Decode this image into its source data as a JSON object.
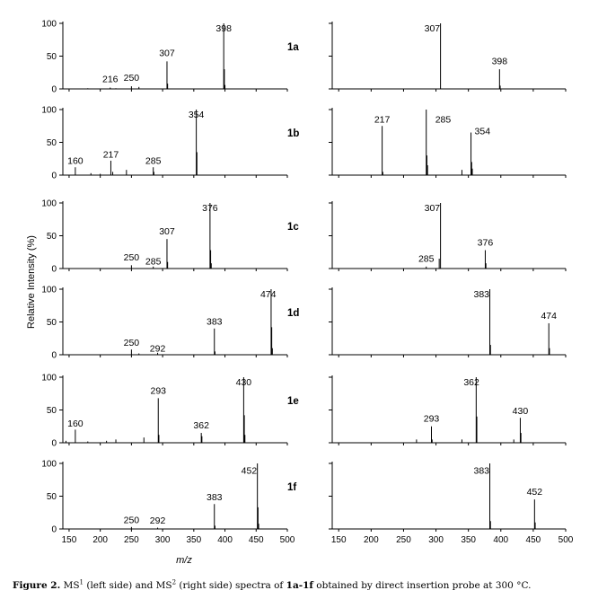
{
  "figure": {
    "ylabel": "Relative Intensity (%)",
    "xlabel": "m/z",
    "caption": {
      "label": "Figure 2.",
      "ms1": "MS",
      "sup1": "1",
      "part1": " (left side) and MS",
      "sup2": "2",
      "part2": " (right side) spectra of ",
      "compounds": "1a-1f",
      "part3": " obtained by direct insertion probe at 300 °C."
    }
  },
  "chart_data": [
    {
      "type": "bar",
      "panel": "1a",
      "side": "MS1",
      "xlim": [
        140,
        500
      ],
      "ylim": [
        0,
        100
      ],
      "yticks": [
        "0",
        "50",
        "100"
      ],
      "xticks": [],
      "peaks": [
        {
          "x": 180,
          "y": 1
        },
        {
          "x": 216,
          "y": 2
        },
        {
          "x": 225,
          "y": 1
        },
        {
          "x": 250,
          "y": 4
        },
        {
          "x": 262,
          "y": 3
        },
        {
          "x": 307,
          "y": 42
        },
        {
          "x": 308,
          "y": 8
        },
        {
          "x": 398,
          "y": 100
        },
        {
          "x": 399,
          "y": 30
        },
        {
          "x": 400,
          "y": 6
        }
      ],
      "labels": [
        {
          "x": 216,
          "text": "216",
          "y": 10
        },
        {
          "x": 250,
          "text": "250",
          "y": 12
        },
        {
          "x": 307,
          "text": "307",
          "y": 50
        },
        {
          "x": 398,
          "text": "398",
          "y": 88
        }
      ],
      "tag": "1a"
    },
    {
      "type": "bar",
      "panel": "1a",
      "side": "MS2",
      "xlim": [
        140,
        500
      ],
      "ylim": [
        0,
        100
      ],
      "yticks": [],
      "xticks": [],
      "peaks": [
        {
          "x": 307,
          "y": 100
        },
        {
          "x": 398,
          "y": 30
        },
        {
          "x": 399,
          "y": 5
        }
      ],
      "labels": [
        {
          "x": 307,
          "text": "307",
          "y": 88,
          "dx": -18
        },
        {
          "x": 398,
          "text": "398",
          "y": 38
        }
      ],
      "tag": ""
    },
    {
      "type": "bar",
      "panel": "1b",
      "side": "MS1",
      "xlim": [
        140,
        500
      ],
      "ylim": [
        0,
        100
      ],
      "yticks": [
        "0",
        "50",
        "100"
      ],
      "xticks": [],
      "peaks": [
        {
          "x": 160,
          "y": 12
        },
        {
          "x": 185,
          "y": 3
        },
        {
          "x": 200,
          "y": 2
        },
        {
          "x": 217,
          "y": 22
        },
        {
          "x": 220,
          "y": 5
        },
        {
          "x": 242,
          "y": 8
        },
        {
          "x": 285,
          "y": 12
        },
        {
          "x": 286,
          "y": 5
        },
        {
          "x": 354,
          "y": 100
        },
        {
          "x": 355,
          "y": 35
        }
      ],
      "labels": [
        {
          "x": 160,
          "text": "160",
          "y": 17
        },
        {
          "x": 217,
          "text": "217",
          "y": 27
        },
        {
          "x": 285,
          "text": "285",
          "y": 17
        },
        {
          "x": 354,
          "text": "354",
          "y": 88
        }
      ],
      "tag": "1b"
    },
    {
      "type": "bar",
      "panel": "1b",
      "side": "MS2",
      "xlim": [
        140,
        500
      ],
      "ylim": [
        0,
        100
      ],
      "yticks": [],
      "xticks": [],
      "peaks": [
        {
          "x": 217,
          "y": 75
        },
        {
          "x": 218,
          "y": 5
        },
        {
          "x": 285,
          "y": 100
        },
        {
          "x": 286,
          "y": 30
        },
        {
          "x": 287,
          "y": 15
        },
        {
          "x": 340,
          "y": 8
        },
        {
          "x": 354,
          "y": 65
        },
        {
          "x": 355,
          "y": 20
        },
        {
          "x": 356,
          "y": 10
        }
      ],
      "labels": [
        {
          "x": 217,
          "text": "217",
          "y": 80
        },
        {
          "x": 285,
          "text": "285",
          "y": 80,
          "dx": 10
        },
        {
          "x": 354,
          "text": "354",
          "y": 62,
          "dx": 4
        }
      ],
      "tag": ""
    },
    {
      "type": "bar",
      "panel": "1c",
      "side": "MS1",
      "xlim": [
        140,
        500
      ],
      "ylim": [
        0,
        100
      ],
      "yticks": [
        "0",
        "50",
        "100"
      ],
      "xticks": [],
      "peaks": [
        {
          "x": 250,
          "y": 5
        },
        {
          "x": 285,
          "y": 3
        },
        {
          "x": 307,
          "y": 45
        },
        {
          "x": 308,
          "y": 10
        },
        {
          "x": 376,
          "y": 100
        },
        {
          "x": 377,
          "y": 28
        },
        {
          "x": 378,
          "y": 8
        }
      ],
      "labels": [
        {
          "x": 250,
          "text": "250",
          "y": 12
        },
        {
          "x": 285,
          "text": "285",
          "y": 6
        },
        {
          "x": 307,
          "text": "307",
          "y": 52
        },
        {
          "x": 376,
          "text": "376",
          "y": 88
        }
      ],
      "tag": "1c"
    },
    {
      "type": "bar",
      "panel": "1c",
      "side": "MS2",
      "xlim": [
        140,
        500
      ],
      "ylim": [
        0,
        100
      ],
      "yticks": [],
      "xticks": [],
      "peaks": [
        {
          "x": 285,
          "y": 3
        },
        {
          "x": 305,
          "y": 15
        },
        {
          "x": 307,
          "y": 100
        },
        {
          "x": 376,
          "y": 28
        },
        {
          "x": 377,
          "y": 8
        }
      ],
      "labels": [
        {
          "x": 285,
          "text": "285",
          "y": 10
        },
        {
          "x": 307,
          "text": "307",
          "y": 88,
          "dx": -18
        },
        {
          "x": 376,
          "text": "376",
          "y": 35
        }
      ],
      "tag": ""
    },
    {
      "type": "bar",
      "panel": "1d",
      "side": "MS1",
      "xlim": [
        140,
        500
      ],
      "ylim": [
        0,
        100
      ],
      "yticks": [
        "0",
        "50",
        "100"
      ],
      "xticks": [],
      "peaks": [
        {
          "x": 250,
          "y": 8
        },
        {
          "x": 262,
          "y": 2
        },
        {
          "x": 292,
          "y": 3
        },
        {
          "x": 383,
          "y": 40
        },
        {
          "x": 384,
          "y": 5
        },
        {
          "x": 474,
          "y": 100
        },
        {
          "x": 475,
          "y": 42
        },
        {
          "x": 476,
          "y": 10
        }
      ],
      "labels": [
        {
          "x": 250,
          "text": "250",
          "y": 14
        },
        {
          "x": 292,
          "text": "292",
          "y": 5
        },
        {
          "x": 383,
          "text": "383",
          "y": 46
        },
        {
          "x": 474,
          "text": "474",
          "y": 88,
          "dx": -12
        }
      ],
      "tag": "1d"
    },
    {
      "type": "bar",
      "panel": "1d",
      "side": "MS2",
      "xlim": [
        140,
        500
      ],
      "ylim": [
        0,
        100
      ],
      "yticks": [],
      "xticks": [],
      "peaks": [
        {
          "x": 383,
          "y": 100
        },
        {
          "x": 384,
          "y": 15
        },
        {
          "x": 474,
          "y": 48
        },
        {
          "x": 475,
          "y": 10
        }
      ],
      "labels": [
        {
          "x": 383,
          "text": "383",
          "y": 88,
          "dx": -18
        },
        {
          "x": 474,
          "text": "474",
          "y": 55
        }
      ],
      "tag": ""
    },
    {
      "type": "bar",
      "panel": "1e",
      "side": "MS1",
      "xlim": [
        140,
        500
      ],
      "ylim": [
        0,
        100
      ],
      "yticks": [
        "0",
        "50",
        "100"
      ],
      "xticks": [],
      "peaks": [
        {
          "x": 145,
          "y": 3
        },
        {
          "x": 160,
          "y": 20
        },
        {
          "x": 180,
          "y": 2
        },
        {
          "x": 210,
          "y": 3
        },
        {
          "x": 225,
          "y": 5
        },
        {
          "x": 270,
          "y": 8
        },
        {
          "x": 293,
          "y": 68
        },
        {
          "x": 294,
          "y": 12
        },
        {
          "x": 362,
          "y": 15
        },
        {
          "x": 363,
          "y": 10
        },
        {
          "x": 430,
          "y": 100
        },
        {
          "x": 431,
          "y": 42
        },
        {
          "x": 432,
          "y": 12
        }
      ],
      "labels": [
        {
          "x": 160,
          "text": "160",
          "y": 25
        },
        {
          "x": 293,
          "text": "293",
          "y": 75
        },
        {
          "x": 362,
          "text": "362",
          "y": 22
        },
        {
          "x": 430,
          "text": "430",
          "y": 88
        }
      ],
      "tag": "1e"
    },
    {
      "type": "bar",
      "panel": "1e",
      "side": "MS2",
      "xlim": [
        140,
        500
      ],
      "ylim": [
        0,
        100
      ],
      "yticks": [],
      "xticks": [],
      "peaks": [
        {
          "x": 270,
          "y": 5
        },
        {
          "x": 293,
          "y": 25
        },
        {
          "x": 294,
          "y": 5
        },
        {
          "x": 340,
          "y": 5
        },
        {
          "x": 362,
          "y": 100
        },
        {
          "x": 363,
          "y": 40
        },
        {
          "x": 420,
          "y": 5
        },
        {
          "x": 430,
          "y": 38
        },
        {
          "x": 431,
          "y": 15
        }
      ],
      "labels": [
        {
          "x": 293,
          "text": "293",
          "y": 32
        },
        {
          "x": 362,
          "text": "362",
          "y": 88,
          "dx": -14
        },
        {
          "x": 430,
          "text": "430",
          "y": 44
        }
      ],
      "tag": ""
    },
    {
      "type": "bar",
      "panel": "1f",
      "side": "MS1",
      "xlim": [
        140,
        500
      ],
      "ylim": [
        0,
        100
      ],
      "yticks": [
        "0",
        "50",
        "100"
      ],
      "xticks": [
        "150",
        "200",
        "250",
        "300",
        "350",
        "400",
        "450",
        "500"
      ],
      "peaks": [
        {
          "x": 250,
          "y": 3
        },
        {
          "x": 292,
          "y": 2
        },
        {
          "x": 383,
          "y": 38
        },
        {
          "x": 384,
          "y": 5
        },
        {
          "x": 452,
          "y": 100
        },
        {
          "x": 453,
          "y": 33
        },
        {
          "x": 454,
          "y": 8
        }
      ],
      "labels": [
        {
          "x": 250,
          "text": "250",
          "y": 9
        },
        {
          "x": 292,
          "text": "292",
          "y": 8
        },
        {
          "x": 383,
          "text": "383",
          "y": 44
        },
        {
          "x": 452,
          "text": "452",
          "y": 84,
          "dx": -18
        }
      ],
      "tag": "1f"
    },
    {
      "type": "bar",
      "panel": "1f",
      "side": "MS2",
      "xlim": [
        140,
        500
      ],
      "ylim": [
        0,
        100
      ],
      "yticks": [],
      "xticks": [
        "150",
        "200",
        "250",
        "300",
        "350",
        "400",
        "450",
        "500"
      ],
      "peaks": [
        {
          "x": 383,
          "y": 100
        },
        {
          "x": 384,
          "y": 12
        },
        {
          "x": 452,
          "y": 45
        },
        {
          "x": 453,
          "y": 10
        }
      ],
      "labels": [
        {
          "x": 383,
          "text": "383",
          "y": 84,
          "dx": -18
        },
        {
          "x": 452,
          "text": "452",
          "y": 52
        }
      ],
      "tag": ""
    }
  ]
}
